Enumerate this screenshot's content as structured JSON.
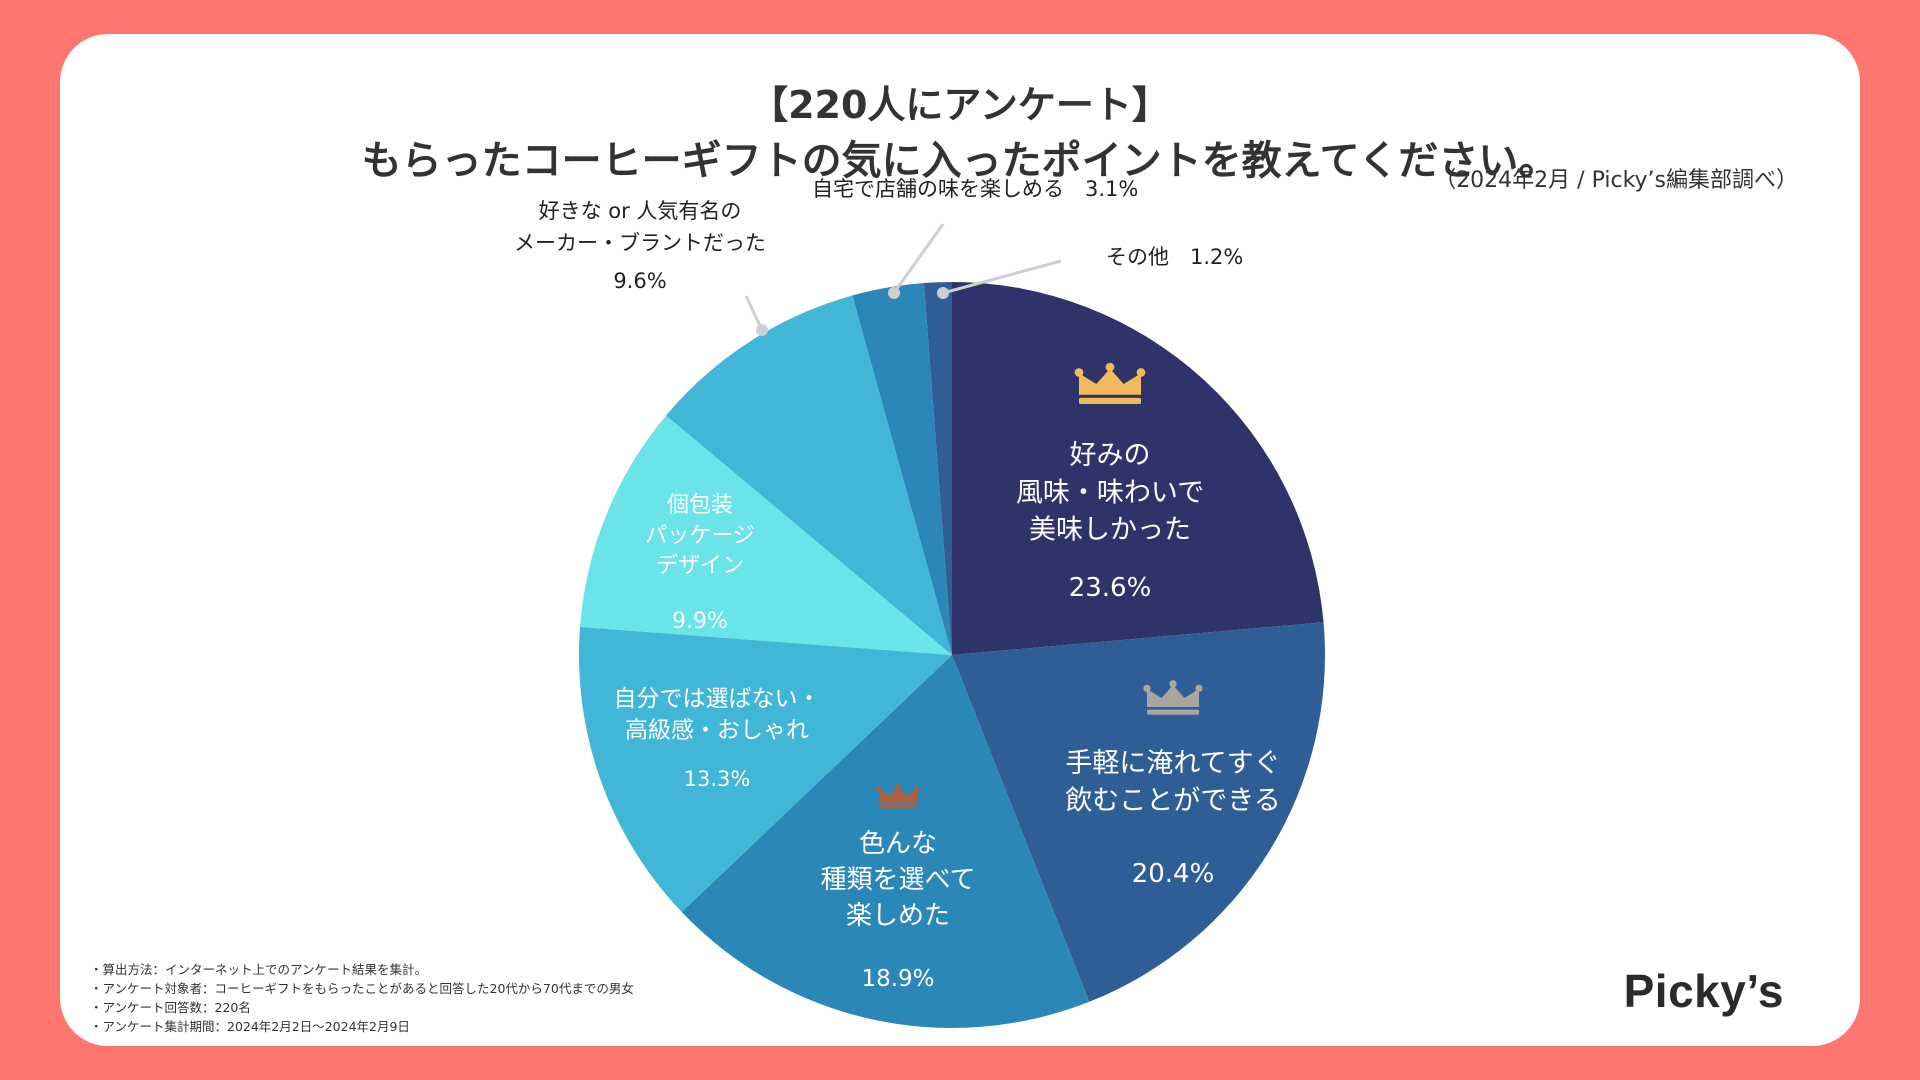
{
  "header": {
    "title_line1": "【220人にアンケート】",
    "title_line2": "もらったコーヒーギフトの気に入ったポイントを教えてください。",
    "source": "（2024年2月 / Picky’s編集部調べ）"
  },
  "chart_data": {
    "type": "pie",
    "title": "もらったコーヒーギフトの気に入ったポイントを教えてください。",
    "start": "12 o'clock, clockwise",
    "slices": [
      {
        "lines": [
          "好みの",
          "風味・味わいで",
          "美味しかった"
        ],
        "pct_label": "23.6%",
        "value": 23.6,
        "color": "#2e3369",
        "rank": 1,
        "crown_color": "#f4b95c",
        "label_color": "#ffffff",
        "external": false
      },
      {
        "lines": [
          "手軽に淹れてすぐ",
          "飲むことができる"
        ],
        "pct_label": "20.4%",
        "value": 20.4,
        "color": "#2f5e97",
        "rank": 2,
        "crown_color": "#a9a6a0",
        "label_color": "#ffffff",
        "external": false
      },
      {
        "lines": [
          "色んな",
          "種類を選べて",
          "楽しめた"
        ],
        "pct_label": "18.9%",
        "value": 18.9,
        "color": "#2b87b8",
        "rank": 3,
        "crown_color": "#b0603a",
        "label_color": "#ffffff",
        "external": false
      },
      {
        "lines": [
          "自分では選ばない・",
          "高級感・おしゃれ"
        ],
        "pct_label": "13.3%",
        "value": 13.3,
        "color": "#42b6d7",
        "rank": 0,
        "label_color": "#ffffff",
        "external": false
      },
      {
        "lines": [
          "個包装",
          "パッケージ",
          "デザイン"
        ],
        "pct_label": "9.9%",
        "value": 9.9,
        "color": "#6ae3e9",
        "rank": 0,
        "label_color": "#ffffff",
        "external": false
      },
      {
        "lines": [
          "好きな or 人気有名の",
          "メーカー・ブラントだった"
        ],
        "pct_label": "9.6%",
        "value": 9.6,
        "color": "#42b6d7",
        "rank": 0,
        "label_color": "#222222",
        "external": true
      },
      {
        "lines": [
          "自宅で店舗の味を楽しめる　3.1%"
        ],
        "pct_label": "",
        "value": 3.1,
        "color": "#2b87b8",
        "rank": 0,
        "label_color": "#222222",
        "external": true
      },
      {
        "lines": [
          "その他　1.2%"
        ],
        "pct_label": "",
        "value": 1.2,
        "color": "#2f5e97",
        "rank": 0,
        "label_color": "#222222",
        "external": true
      }
    ]
  },
  "notes": [
    "・算出方法：インターネット上でのアンケート結果を集計。",
    "・アンケート対象者：コーヒーギフトをもらったことがあると回答した20代から70代までの男女",
    "・アンケート回答数：220名",
    "・アンケート集計期間：2024年2月2日〜2024年2月9日"
  ],
  "brand": "Picky’s"
}
